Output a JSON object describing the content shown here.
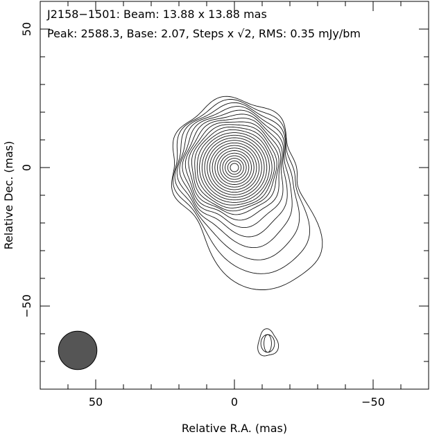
{
  "chart_data": {
    "type": "contour",
    "header": {
      "line1": "J2158−1501: Beam: 13.88 x 13.88 mas",
      "line2": "Peak: 2588.3, Base: 2.07, Steps x √2, RMS: 0.35 mJy/bm"
    },
    "xlabel": "Relative R.A. (mas)",
    "ylabel": "Relative Dec. (mas)",
    "xlim": [
      70,
      -70
    ],
    "ylim": [
      -80,
      60
    ],
    "x_ticks": [
      {
        "value": 50,
        "label": "50"
      },
      {
        "value": 0,
        "label": "0"
      },
      {
        "value": -50,
        "label": "−50"
      }
    ],
    "y_ticks": [
      {
        "value": 50,
        "label": "50"
      },
      {
        "value": 0,
        "label": "0"
      },
      {
        "value": -50,
        "label": "−50"
      }
    ],
    "peak_mJy_per_beam": 2588.3,
    "base_contour_mJy_per_beam": 2.07,
    "step_factor": 1.414,
    "rms_mJy_per_beam": 0.35,
    "beam": {
      "major_mas": 13.88,
      "minor_mas": 13.88,
      "center": [
        56.5,
        -66
      ],
      "color": "#555555"
    },
    "core_center": [
      0,
      0
    ],
    "secondary_component": {
      "center": [
        -12,
        -63.5
      ]
    }
  }
}
